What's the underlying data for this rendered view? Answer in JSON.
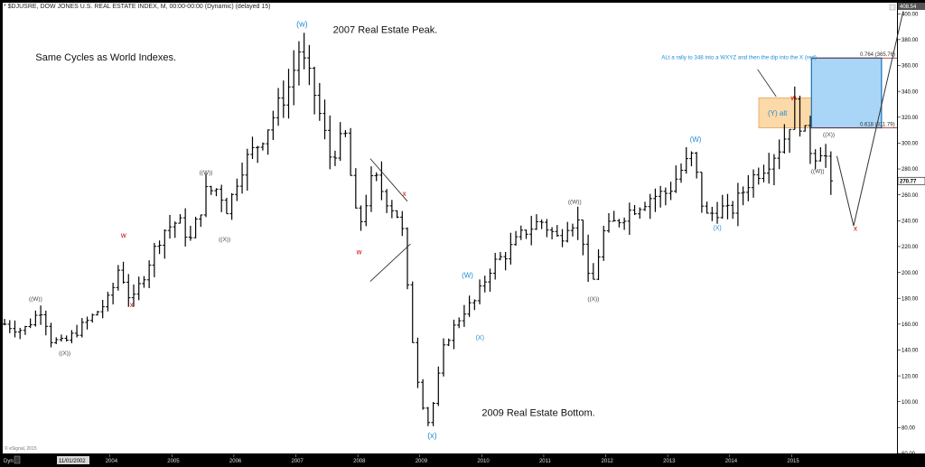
{
  "header": {
    "title": "* $DJUSRE, DOW JONES U.S. REAL ESTATE INDEX, M, 00:00-00:00 (Dynamic) (delayed 15)"
  },
  "footer": {
    "copyright": "© eSignal, 2015",
    "dyn_label": "Dyn",
    "cursor_date": "11/01/2002"
  },
  "colors": {
    "bars": "#000000",
    "wave_blue": "#1f8dd6",
    "wave_red": "#cc0000",
    "wave_gray": "#444444",
    "blue_box_fill": "#a9d6f7",
    "blue_box_stroke": "#1a6fb6",
    "orange_box_fill": "#fbd9a8",
    "orange_box_stroke": "#e6a35a",
    "fib_line": "#8b1a1a"
  },
  "chart_data": {
    "type": "ohlc",
    "title": "",
    "x_unit": "year",
    "xlim": [
      2002.27,
      2016.7
    ],
    "ylim": [
      60.0,
      408.54
    ],
    "yticks": [
      60,
      80,
      100,
      120,
      140,
      160,
      180,
      200,
      220,
      240,
      260,
      280,
      300,
      320,
      340,
      360,
      380,
      400
    ],
    "ytick_labels": [
      "60.00",
      "80.00",
      "100.00",
      "120.00",
      "140.00",
      "160.00",
      "180.00",
      "200.00",
      "220.00",
      "240.00",
      "260.00",
      "270.77",
      "280.00",
      "300.00",
      "320.00",
      "340.00",
      "360.00",
      "380.00",
      "400.00",
      "408.54"
    ],
    "ytick_label_values": [
      60,
      80,
      100,
      120,
      140,
      160,
      180,
      200,
      220,
      240,
      260,
      270.77,
      280,
      300,
      320,
      340,
      360,
      380,
      400,
      408.54
    ],
    "xticks": [
      {
        "x": 2004.0,
        "label": "2004"
      },
      {
        "x": 2005.0,
        "label": "2005"
      },
      {
        "x": 2006.0,
        "label": "2006"
      },
      {
        "x": 2007.0,
        "label": "2007"
      },
      {
        "x": 2008.0,
        "label": "2008"
      },
      {
        "x": 2009.0,
        "label": "2009"
      },
      {
        "x": 2010.0,
        "label": "2010"
      },
      {
        "x": 2011.0,
        "label": "2011"
      },
      {
        "x": 2012.0,
        "label": "2012"
      },
      {
        "x": 2013.0,
        "label": "2013"
      },
      {
        "x": 2014.0,
        "label": "2014"
      },
      {
        "x": 2015.0,
        "label": "2015"
      }
    ],
    "last_price": 270.77,
    "key_points": [
      [
        2002.3,
        160
      ],
      [
        2002.6,
        155
      ],
      [
        2002.9,
        172
      ],
      [
        2003.05,
        148
      ],
      [
        2003.25,
        145
      ],
      [
        2003.7,
        165
      ],
      [
        2004.0,
        180
      ],
      [
        2004.15,
        205
      ],
      [
        2004.35,
        175
      ],
      [
        2004.6,
        205
      ],
      [
        2004.85,
        232
      ],
      [
        2005.1,
        240
      ],
      [
        2005.3,
        225
      ],
      [
        2005.55,
        262
      ],
      [
        2005.75,
        265
      ],
      [
        2005.9,
        248
      ],
      [
        2006.1,
        280
      ],
      [
        2006.4,
        300
      ],
      [
        2006.65,
        322
      ],
      [
        2006.9,
        345
      ],
      [
        2007.05,
        372
      ],
      [
        2007.3,
        338
      ],
      [
        2007.55,
        290
      ],
      [
        2007.8,
        305
      ],
      [
        2008.0,
        232
      ],
      [
        2008.25,
        275
      ],
      [
        2008.45,
        258
      ],
      [
        2008.7,
        240
      ],
      [
        2008.85,
        160
      ],
      [
        2009.0,
        105
      ],
      [
        2009.15,
        82
      ],
      [
        2009.4,
        145
      ],
      [
        2009.7,
        170
      ],
      [
        2009.9,
        178
      ],
      [
        2010.15,
        205
      ],
      [
        2010.4,
        215
      ],
      [
        2010.7,
        232
      ],
      [
        2010.95,
        240
      ],
      [
        2011.25,
        225
      ],
      [
        2011.4,
        240
      ],
      [
        2011.6,
        238
      ],
      [
        2011.75,
        182
      ],
      [
        2011.95,
        230
      ],
      [
        2012.3,
        245
      ],
      [
        2012.7,
        258
      ],
      [
        2013.0,
        262
      ],
      [
        2013.2,
        278
      ],
      [
        2013.4,
        290
      ],
      [
        2013.6,
        242
      ],
      [
        2013.85,
        250
      ],
      [
        2014.0,
        245
      ],
      [
        2014.3,
        270
      ],
      [
        2014.6,
        285
      ],
      [
        2014.85,
        300
      ],
      [
        2015.05,
        328
      ],
      [
        2015.2,
        308
      ],
      [
        2015.35,
        290
      ],
      [
        2015.5,
        298
      ],
      [
        2015.65,
        270.77
      ]
    ],
    "fib_levels": [
      {
        "label": "0.764 (365.76)",
        "value": 365.76
      },
      {
        "label": "0.618 (311.79)",
        "value": 311.79
      }
    ],
    "boxes": [
      {
        "name": "y-alt-box",
        "x0": 2014.47,
        "x1": 2015.32,
        "y0": 311.79,
        "y1": 335.0,
        "label": "(Y) alt"
      },
      {
        "name": "target-zone-box",
        "x0": 2015.32,
        "x1": 2016.45,
        "y0": 311.79,
        "y1": 365.76
      }
    ],
    "projections": [
      {
        "name": "projection-down",
        "points": [
          [
            2015.73,
            290
          ],
          [
            2016.0,
            236
          ]
        ]
      },
      {
        "name": "projection-up",
        "points": [
          [
            2016.0,
            236
          ],
          [
            2016.8,
            402
          ]
        ]
      }
    ],
    "trendlines": [
      {
        "name": "wedge-upper",
        "points": [
          [
            2008.2,
            288
          ],
          [
            2008.8,
            255
          ]
        ]
      },
      {
        "name": "wedge-lower",
        "points": [
          [
            2008.2,
            193
          ],
          [
            2008.85,
            222
          ]
        ]
      },
      {
        "name": "callout-pointer",
        "points": [
          [
            2014.75,
            336
          ],
          [
            2014.45,
            357
          ]
        ]
      }
    ],
    "annotations": [
      {
        "text": "Same Cycles as World Indexes.",
        "x": 2002.8,
        "y": 364,
        "size": 11,
        "color": "#111111"
      },
      {
        "text": "2007 Real Estate Peak.",
        "x": 2007.6,
        "y": 385,
        "size": 11,
        "color": "#111111"
      },
      {
        "text": "2009 Real Estate Bottom.",
        "x": 2010.0,
        "y": 89,
        "size": 11,
        "color": "#111111"
      },
      {
        "text": "ALt a rally to 348 into a  WXYZ and then the dip into the X (red)",
        "x": 2012.9,
        "y": 365,
        "size": 6.2,
        "color": "#1f8dd6"
      }
    ],
    "wave_labels": [
      {
        "text": "((W))",
        "x": 2002.8,
        "y": 178,
        "color": "#444444",
        "size": 6.5
      },
      {
        "text": "((X))",
        "x": 2003.27,
        "y": 136,
        "color": "#444444",
        "size": 6.5
      },
      {
        "text": "w",
        "x": 2004.22,
        "y": 227,
        "color": "#cc0000",
        "size": 8
      },
      {
        "text": "x",
        "x": 2004.35,
        "y": 173,
        "color": "#cc0000",
        "size": 8
      },
      {
        "text": "((W))",
        "x": 2005.55,
        "y": 276,
        "color": "#444444",
        "size": 6.5
      },
      {
        "text": "((X))",
        "x": 2005.85,
        "y": 224,
        "color": "#444444",
        "size": 6.5
      },
      {
        "text": "(w)",
        "x": 2007.1,
        "y": 390,
        "color": "#1f8dd6",
        "size": 9
      },
      {
        "text": "w",
        "x": 2008.02,
        "y": 214,
        "color": "#cc0000",
        "size": 8
      },
      {
        "text": "x",
        "x": 2008.75,
        "y": 259,
        "color": "#cc0000",
        "size": 8
      },
      {
        "text": "(x)",
        "x": 2009.2,
        "y": 72,
        "color": "#1f8dd6",
        "size": 9
      },
      {
        "text": "(W)",
        "x": 2009.77,
        "y": 196,
        "color": "#1f8dd6",
        "size": 8
      },
      {
        "text": "(X)",
        "x": 2009.97,
        "y": 148,
        "color": "#1f8dd6",
        "size": 7
      },
      {
        "text": "((W))",
        "x": 2011.5,
        "y": 253,
        "color": "#444444",
        "size": 6.5
      },
      {
        "text": "((X))",
        "x": 2011.8,
        "y": 178,
        "color": "#444444",
        "size": 6.5
      },
      {
        "text": "(W)",
        "x": 2013.45,
        "y": 301,
        "color": "#1f8dd6",
        "size": 8
      },
      {
        "text": "(X)",
        "x": 2013.8,
        "y": 233,
        "color": "#1f8dd6",
        "size": 7
      },
      {
        "text": "w",
        "x": 2015.03,
        "y": 333,
        "color": "#cc0000",
        "size": 8
      },
      {
        "text": "((X))",
        "x": 2015.6,
        "y": 305,
        "color": "#444444",
        "size": 6.5
      },
      {
        "text": "((W))",
        "x": 2015.42,
        "y": 277,
        "color": "#444444",
        "size": 6.5
      },
      {
        "text": "x",
        "x": 2016.03,
        "y": 232,
        "color": "#cc0000",
        "size": 8
      }
    ]
  }
}
